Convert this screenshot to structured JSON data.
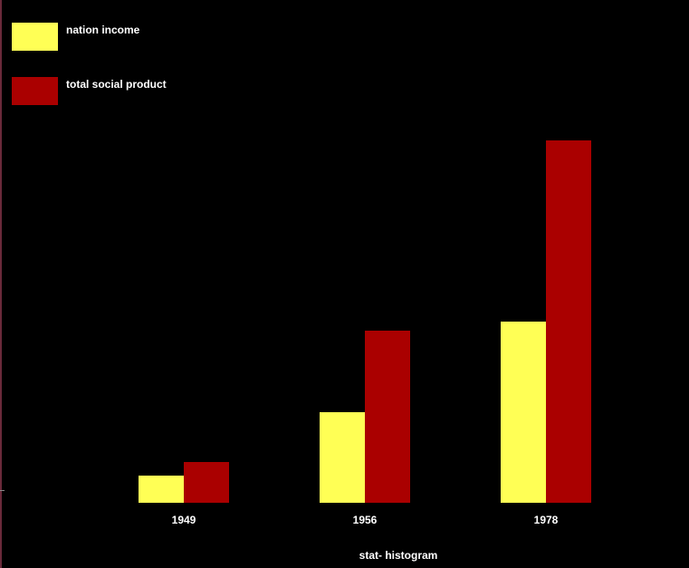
{
  "chart_data": {
    "type": "bar",
    "title": "",
    "xlabel": "stat- histogram",
    "ylabel": "",
    "categories": [
      "1949",
      "1956",
      "1978"
    ],
    "series": [
      {
        "name": "nation income",
        "color": "#ffff55",
        "values": [
          30,
          100,
          200
        ]
      },
      {
        "name": "total social product",
        "color": "#aa0000",
        "values": [
          45,
          190,
          400
        ]
      }
    ],
    "ylim": [
      0,
      420
    ],
    "grid": false,
    "legend": "top-left"
  }
}
